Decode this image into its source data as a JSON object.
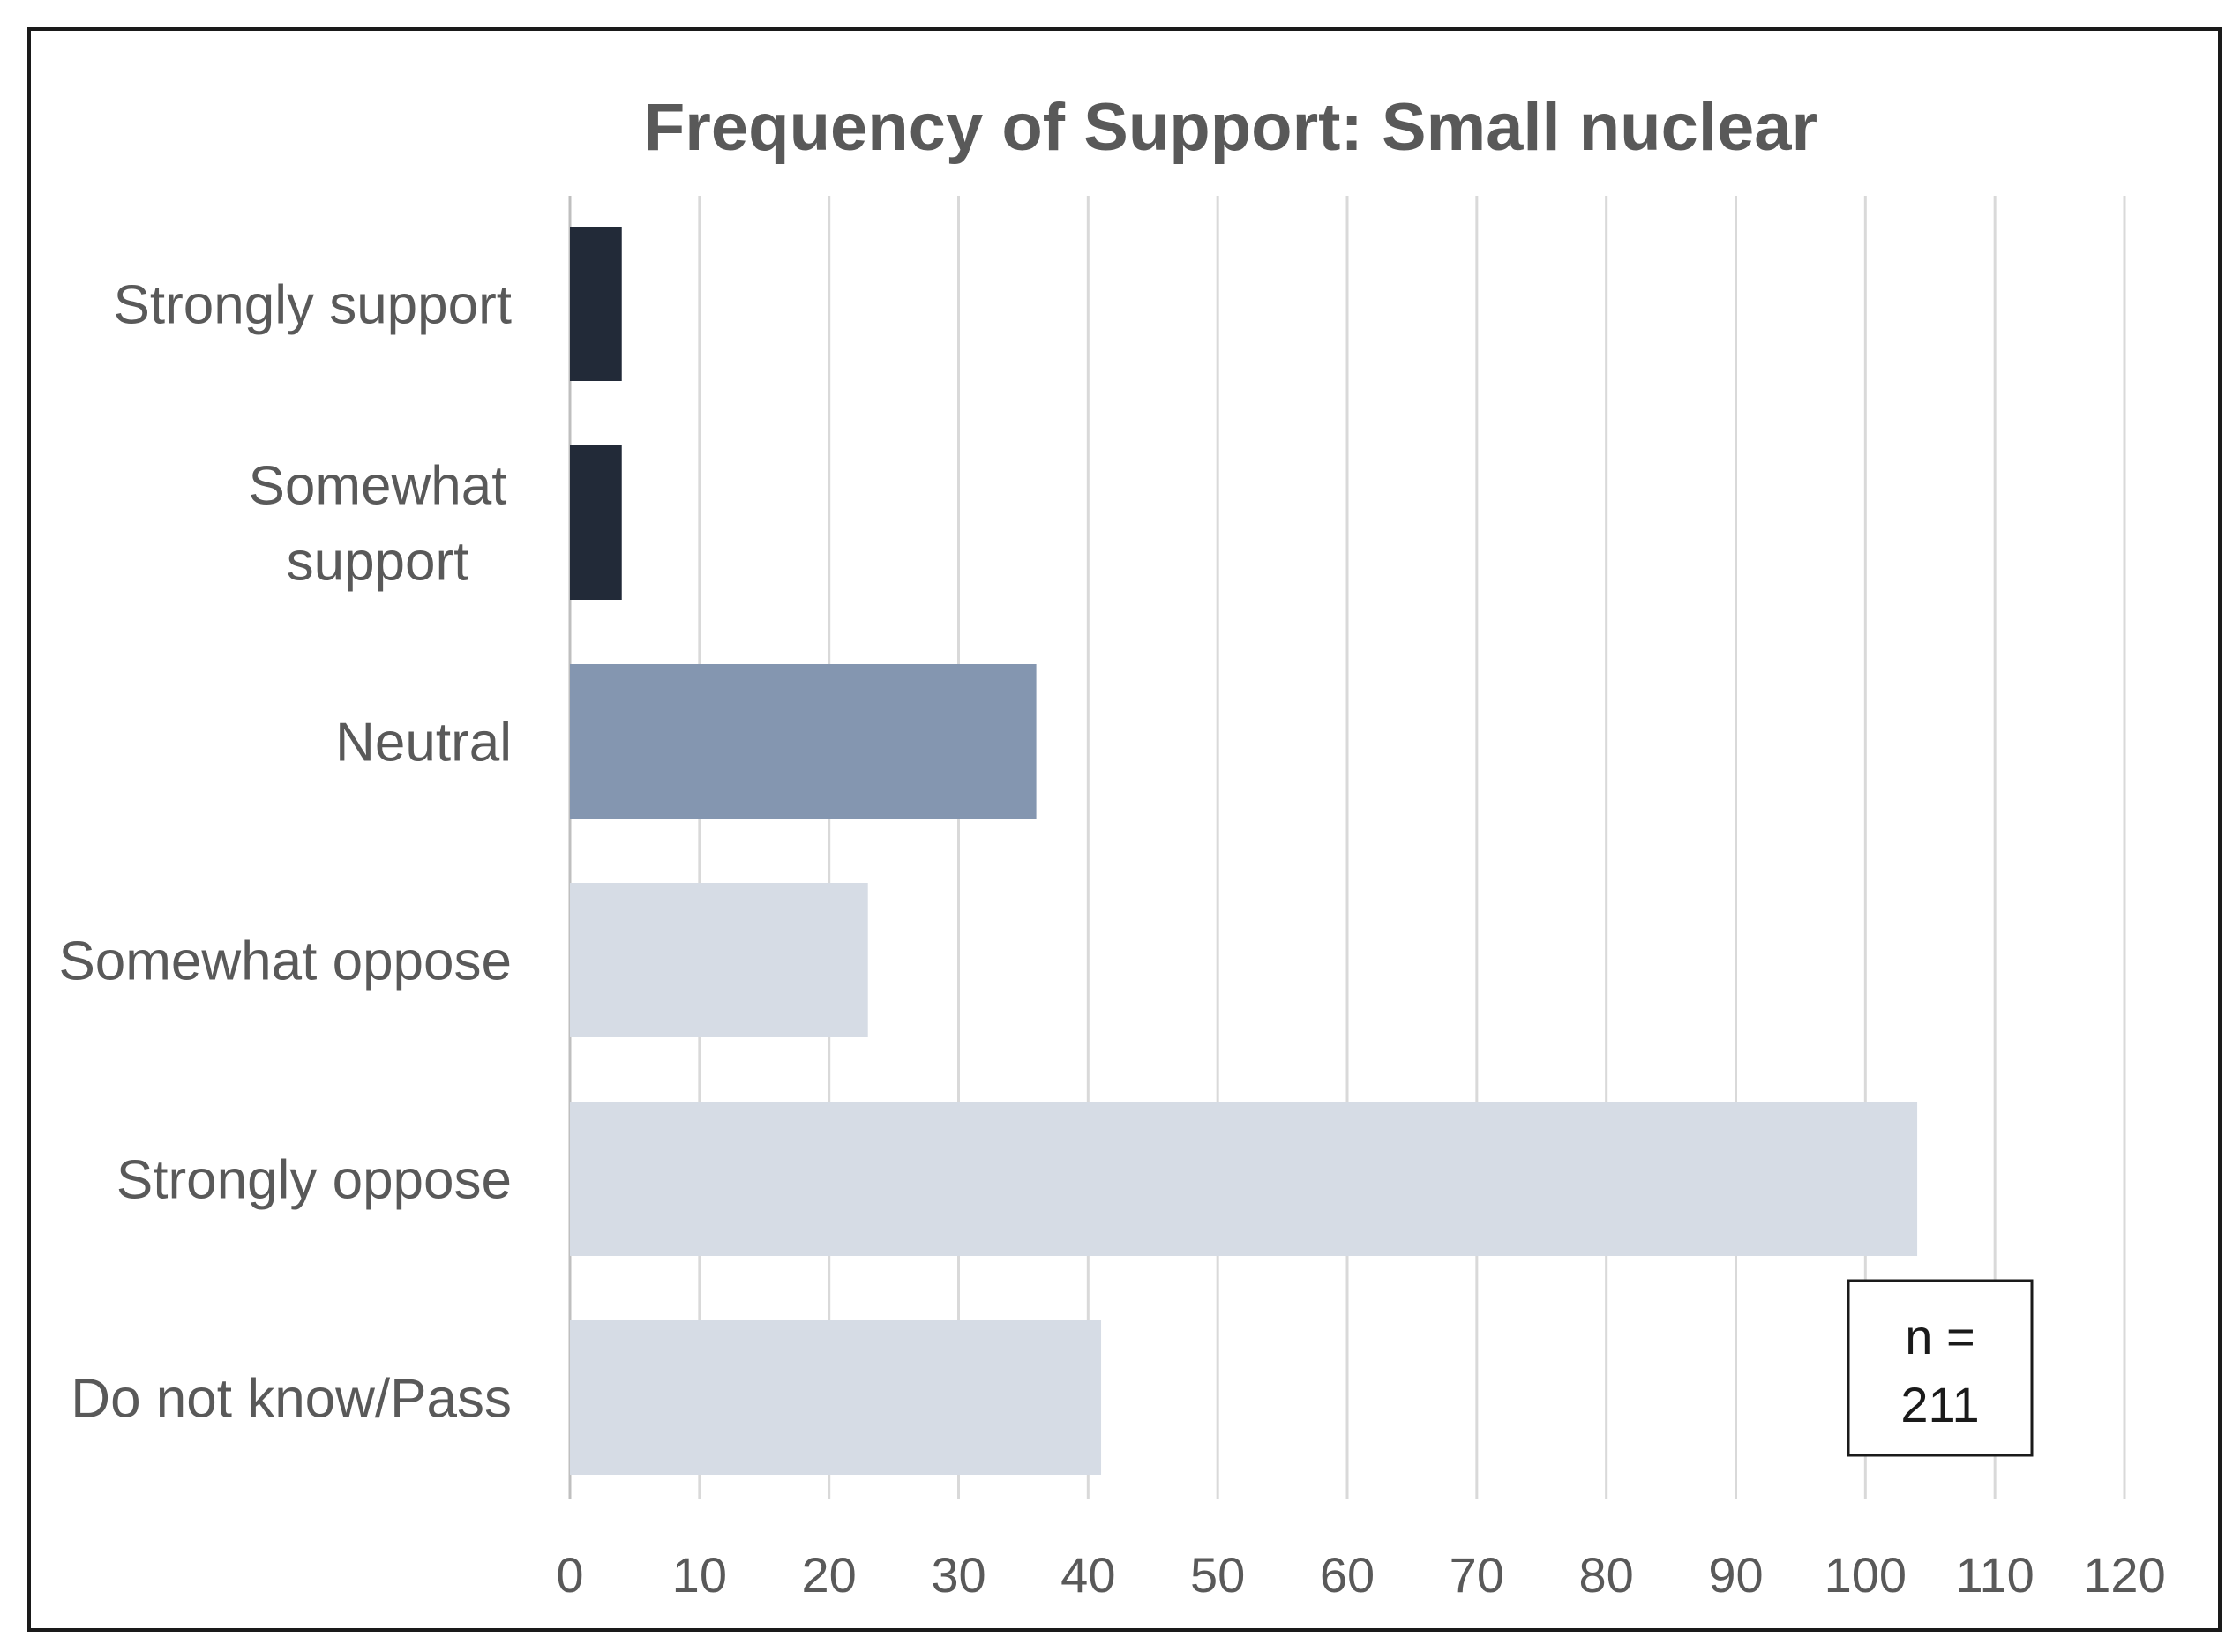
{
  "chart_data": {
    "type": "bar",
    "orientation": "horizontal",
    "title": "Frequency of Support: Small nuclear",
    "xlabel": "",
    "ylabel": "",
    "xlim": [
      0,
      120
    ],
    "ticks": [
      0,
      10,
      20,
      30,
      40,
      50,
      60,
      70,
      80,
      90,
      100,
      110,
      120
    ],
    "grid": true,
    "categories": [
      [
        "Strongly support"
      ],
      [
        "Somewhat",
        "support"
      ],
      [
        "Neutral"
      ],
      [
        "Somewhat oppose"
      ],
      [
        "Strongly oppose"
      ],
      [
        "Do not know/Pass"
      ]
    ],
    "values": [
      4,
      4,
      36,
      23,
      104,
      41
    ],
    "colors": [
      "#222a38",
      "#222a38",
      "#8496b0",
      "#d6dce5",
      "#d6dce5",
      "#d6dce5"
    ],
    "annotation": {
      "lines": [
        "n =",
        "211"
      ],
      "position": "bottom-right"
    }
  }
}
